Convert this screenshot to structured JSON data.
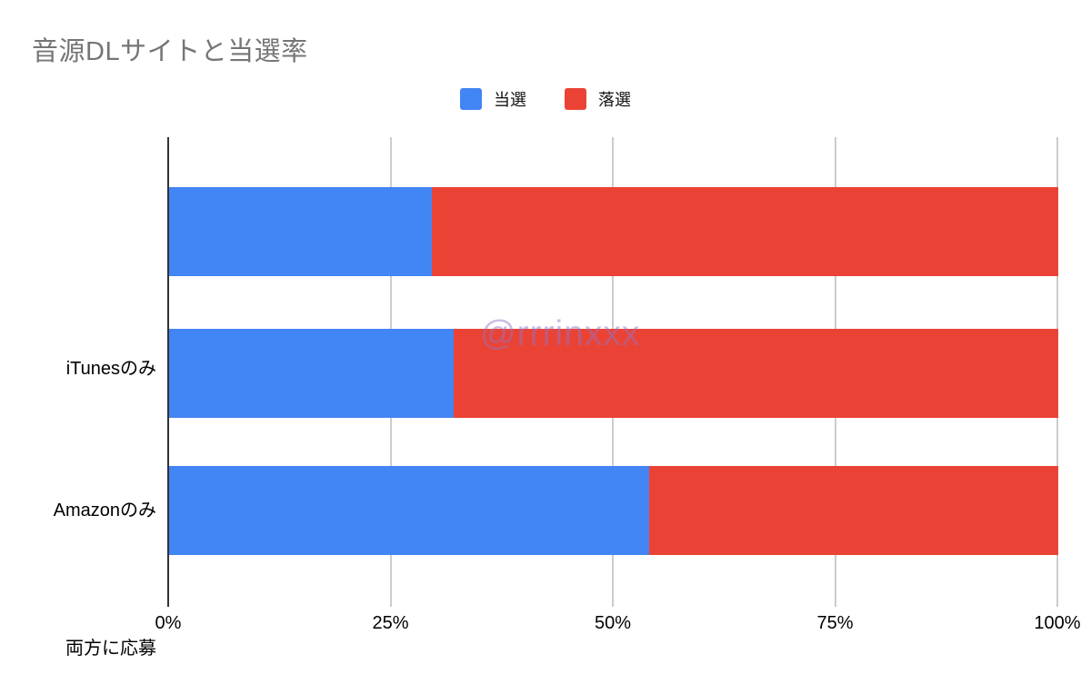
{
  "title": "音源DLサイトと当選率",
  "watermark": "@rrrinxxx",
  "colors": {
    "won": "#4285F4",
    "lost": "#EA4335",
    "title_text": "#757575",
    "gridline": "#cccccc",
    "axis_line": "#333333",
    "label_text": "#000000"
  },
  "legend": {
    "items": [
      {
        "label": "当選",
        "color": "#4285F4"
      },
      {
        "label": "落選",
        "color": "#EA4335"
      }
    ]
  },
  "chart_data": {
    "type": "bar",
    "orientation": "horizontal",
    "stacked": true,
    "stack_mode": "percent",
    "title": "音源DLサイトと当選率",
    "categories": [
      "iTunesのみ",
      "Amazonのみ",
      "両方に応募"
    ],
    "series": [
      {
        "name": "当選",
        "color": "#4285F4",
        "values": [
          29.5,
          32,
          54
        ]
      },
      {
        "name": "落選",
        "color": "#EA4335",
        "values": [
          70.5,
          68,
          46
        ]
      }
    ],
    "xlabel": "",
    "ylabel": "",
    "xlim": [
      0,
      100
    ],
    "x_ticks": [
      "0%",
      "25%",
      "50%",
      "75%",
      "100%"
    ],
    "grid": true,
    "legend_position": "top"
  }
}
